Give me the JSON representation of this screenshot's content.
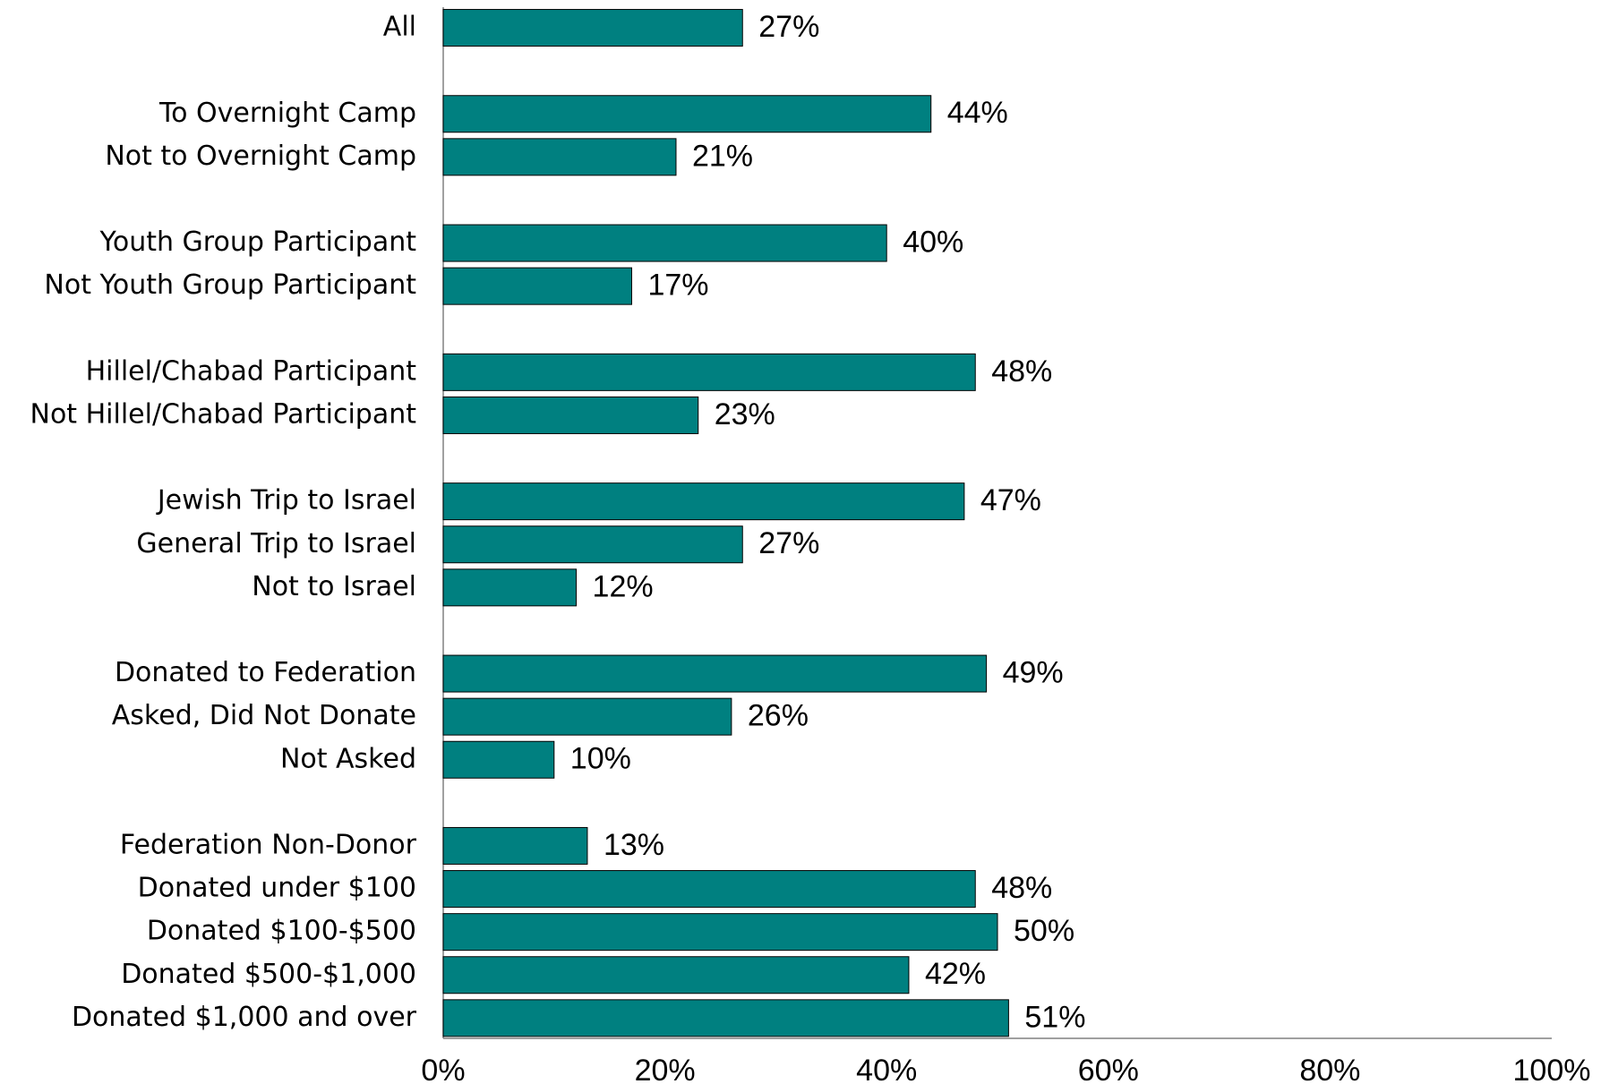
{
  "chart_data": {
    "type": "bar",
    "orientation": "horizontal",
    "categories": [
      "All",
      null,
      "To Overnight Camp",
      "Not to Overnight Camp",
      null,
      "Youth Group Participant",
      "Not Youth Group Participant",
      null,
      "Hillel/Chabad Participant",
      "Not Hillel/Chabad Participant",
      null,
      "Jewish Trip to Israel",
      "General Trip to Israel",
      "Not to Israel",
      null,
      "Donated to Federation",
      "Asked, Did Not Donate",
      "Not Asked",
      null,
      "Federation Non-Donor",
      "Donated under $100",
      "Donated $100-$500",
      "Donated $500-$1,000",
      "Donated $1,000 and over"
    ],
    "values": [
      27,
      null,
      44,
      21,
      null,
      40,
      17,
      null,
      48,
      23,
      null,
      47,
      27,
      12,
      null,
      49,
      26,
      10,
      null,
      13,
      48,
      50,
      42,
      51
    ],
    "value_labels": [
      "27%",
      null,
      "44%",
      "21%",
      null,
      "40%",
      "17%",
      null,
      "48%",
      "23%",
      null,
      "47%",
      "27%",
      "12%",
      null,
      "49%",
      "26%",
      "10%",
      null,
      "13%",
      "48%",
      "50%",
      "42%",
      "51%"
    ],
    "color": "#008080",
    "xlim": [
      0,
      100
    ],
    "xticks": [
      {
        "value": 0,
        "label": "0%"
      },
      {
        "value": 20,
        "label": "20%"
      },
      {
        "value": 40,
        "label": "40%"
      },
      {
        "value": 60,
        "label": "60%"
      },
      {
        "value": 80,
        "label": "80%"
      },
      {
        "value": 100,
        "label": "100%"
      }
    ],
    "grid": false
  }
}
